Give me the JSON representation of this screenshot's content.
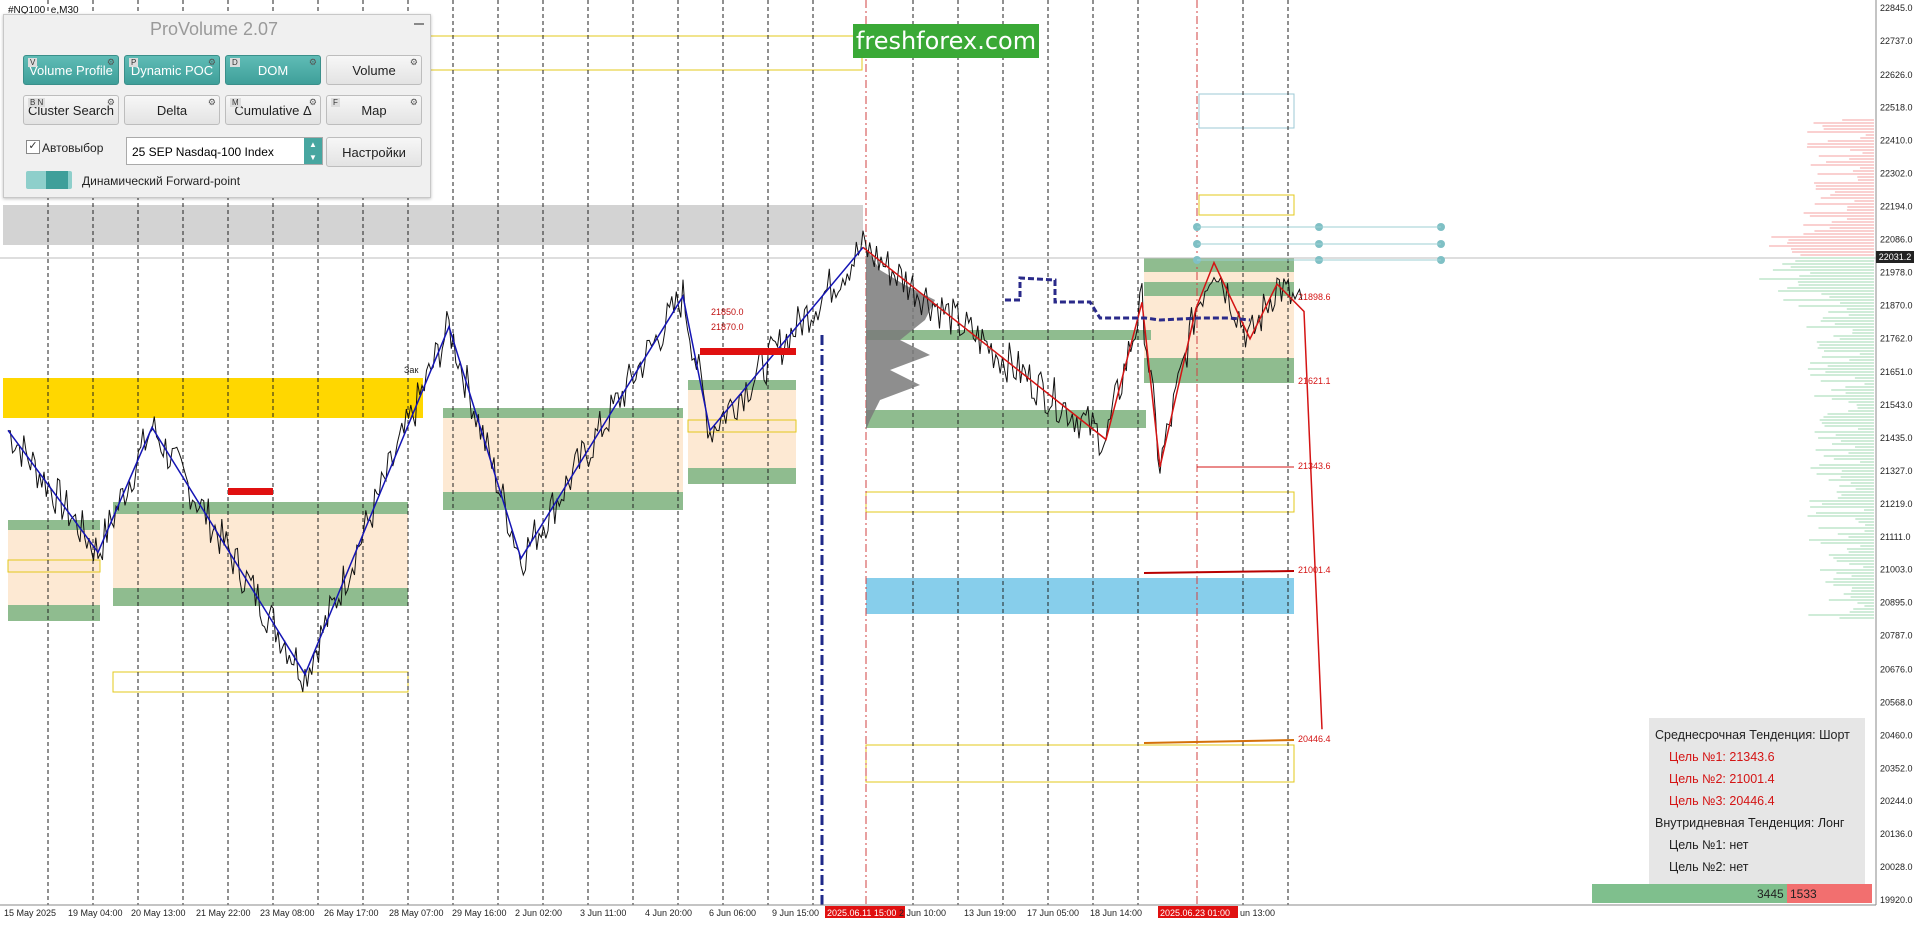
{
  "symbol": "#NQ100_e,M30",
  "panel": {
    "title": "ProVolume 2.07",
    "buttons": [
      {
        "label": "Volume Profile",
        "tag": "V",
        "active": true
      },
      {
        "label": "Dynamic POC",
        "tag": "P",
        "active": true
      },
      {
        "label": "DOM",
        "tag": "D",
        "active": true
      },
      {
        "label": "Volume",
        "tag": "",
        "active": false
      },
      {
        "label": "Cluster Search",
        "tag": "B N",
        "active": false
      },
      {
        "label": "Delta",
        "tag": "",
        "active": false
      },
      {
        "label": "Cumulative Δ",
        "tag": "M",
        "active": false
      },
      {
        "label": "Map",
        "tag": "F",
        "active": false
      }
    ],
    "autoselect_label": "Автовыбор",
    "autoselect_checked": true,
    "instrument_value": "25 SEP Nasdaq-100 Index",
    "settings_label": "Настройки",
    "forward_label": "Динамический Forward-point"
  },
  "watermark": "freshforex.com",
  "price_axis": [
    "22845.0",
    "22737.0",
    "22626.0",
    "22518.0",
    "22410.0",
    "22302.0",
    "22194.0",
    "22086.0",
    "21978.0",
    "21870.0",
    "21762.0",
    "21651.0",
    "21543.0",
    "21435.0",
    "21327.0",
    "21219.0",
    "21111.0",
    "21003.0",
    "20895.0",
    "20787.0",
    "20676.0",
    "20568.0",
    "20460.0",
    "20352.0",
    "20244.0",
    "20136.0",
    "20028.0",
    "19920.0"
  ],
  "current_price": "22031.2",
  "time_axis": [
    "15 May 2025",
    "19 May 04:00",
    "20 May 13:00",
    "21 May 22:00",
    "23 May 08:00",
    "26 May 17:00",
    "28 May 07:00",
    "29 May 16:00",
    "2 Jun 02:00",
    "3 Jun 11:00",
    "4 Jun 20:00",
    "6 Jun 06:00",
    "9 Jun 15:00",
    "2025.06.11 15:00",
    "2 Jun 10:00",
    "13 Jun 19:00",
    "17 Jun 05:00",
    "18 Jun 14:00",
    "2025.06.23 01:00",
    "un 13:00"
  ],
  "level_labels": [
    "21850.0",
    "21870.0",
    "21898.6",
    "21621.1",
    "21343.6",
    "21001.4",
    "20446.4",
    "Зак"
  ],
  "info_box": {
    "medium_trend": "Среднесрочная Тенденция: Шорт",
    "medium_targets": [
      "Цель №1: 21343.6",
      "Цель №2: 21001.4",
      "Цель №3: 20446.4"
    ],
    "intraday_trend": "Внутридневная Тенденция: Лонг",
    "intraday_targets": [
      "Цель №1: нет",
      "Цель №2: нет"
    ]
  },
  "volume_bar": {
    "buy": "3445",
    "sell": "1533"
  },
  "chart_data": {
    "type": "line",
    "title": "",
    "price_range": [
      19920,
      22845
    ],
    "zigzag_blue": [
      [
        0,
        21460
      ],
      [
        1,
        21060
      ],
      [
        1.6,
        21470
      ],
      [
        3.3,
        20660
      ],
      [
        4.9,
        21800
      ],
      [
        5.7,
        21040
      ],
      [
        7.5,
        21900
      ],
      [
        7.8,
        21460
      ],
      [
        9.5,
        22060
      ]
    ],
    "zigzag_red": [
      [
        9.5,
        22060
      ],
      [
        12.2,
        21430
      ],
      [
        12.6,
        21880
      ],
      [
        12.8,
        21340
      ],
      [
        13.2,
        21860
      ],
      [
        13.4,
        22010
      ],
      [
        13.8,
        21760
      ],
      [
        14.1,
        21940
      ],
      [
        14.4,
        21850
      ],
      [
        14.6,
        20480
      ]
    ],
    "target_levels": [
      21343.6,
      21001.4,
      20446.4
    ]
  },
  "colors": {
    "accent": "#3f9f9a",
    "buy": "#7fbf8d",
    "sell": "#f26f6f",
    "zone_gold": "#ffd700",
    "zone_blue": "#87ceeb",
    "zone_green": "#8fbc8f",
    "zone_peach": "#fde9d3"
  }
}
